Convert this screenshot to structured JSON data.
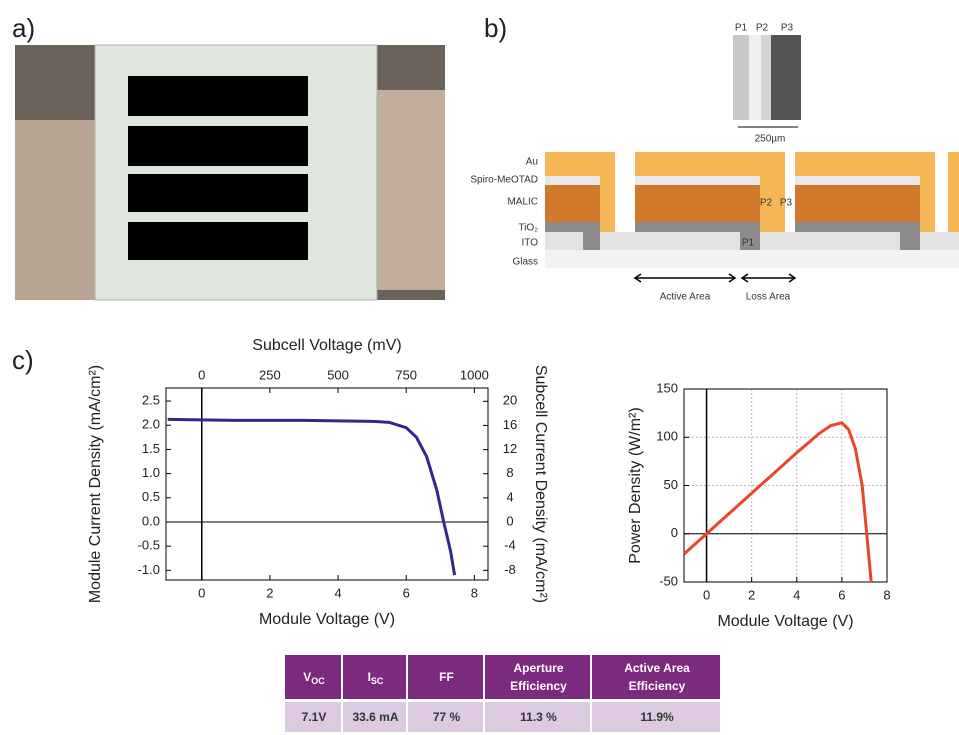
{
  "panel_labels": [
    "a)",
    "b)",
    "c)"
  ],
  "diagram": {
    "scribe_labels": [
      "P1",
      "P2",
      "P3"
    ],
    "scale_label": "250µm",
    "layer_labels": [
      "Au",
      "Spiro-MeOTAD",
      "MALIC",
      "TiO₂",
      "ITO",
      "Glass"
    ],
    "cross_labels": [
      "P2",
      "P3",
      "P1"
    ],
    "area_labels": [
      "Active Area",
      "Loss Area"
    ]
  },
  "chart_data": [
    {
      "type": "line",
      "x_label": "Module Voltage (V)",
      "x2_label": "Subcell Voltage (mV)",
      "y_label": "Module Current Density (mA/cm²)",
      "y2_label": "Subcell Current Density (mA/cm²)",
      "x": [
        -1,
        0,
        1,
        2,
        3,
        4,
        5,
        5.5,
        6,
        6.3,
        6.6,
        6.9,
        7.1,
        7.3,
        7.42
      ],
      "values": [
        2.12,
        2.11,
        2.1,
        2.1,
        2.1,
        2.09,
        2.08,
        2.06,
        1.95,
        1.75,
        1.35,
        0.65,
        0,
        -0.6,
        -1.1
      ],
      "color": "#2e2a8c",
      "xlim": [
        -1.05,
        8.4
      ],
      "xticks": [
        0,
        2,
        4,
        6,
        8
      ],
      "x2lim": [
        -131,
        1050
      ],
      "x2ticks": [
        0,
        250,
        500,
        750,
        1000
      ],
      "ylim": [
        -1.2,
        2.77
      ],
      "yticks": [
        {
          "value": -1,
          "label": "-1.0"
        },
        {
          "value": -0.5,
          "label": "-0.5"
        },
        {
          "value": 0,
          "label": "0.0"
        },
        0.5,
        {
          "value": 1,
          "label": "1.0"
        },
        1.5,
        {
          "value": 2,
          "label": "2.0"
        },
        2.5
      ],
      "y2lim": [
        -9.6,
        22.2
      ],
      "y2ticks": [
        -8,
        -4,
        0,
        4,
        8,
        12,
        16,
        20
      ],
      "zero_lines": true,
      "grid": false
    },
    {
      "type": "line",
      "x_label": "Module Voltage (V)",
      "y_label": "Power Density (W/m²)",
      "x": [
        -1,
        0,
        1,
        2,
        3,
        4,
        5,
        5.5,
        6,
        6.3,
        6.6,
        6.9,
        7.1,
        7.2,
        7.3
      ],
      "values": [
        -21,
        0,
        21,
        42,
        63,
        84,
        104,
        112,
        115,
        108,
        88,
        50,
        0,
        -25,
        -50
      ],
      "color": "#e8452a",
      "xlim": [
        -1,
        8
      ],
      "xticks": [
        0,
        2,
        4,
        6,
        8
      ],
      "ylim": [
        -50,
        150
      ],
      "yticks": [
        -50,
        0,
        50,
        100,
        150
      ],
      "zero_lines": true,
      "grid": true
    }
  ],
  "table": {
    "headers": [
      {
        "text": "V",
        "sub": "OC"
      },
      {
        "text": "I",
        "sub": "SC"
      },
      "FF",
      "Aperture Efficiency",
      "Active Area Efficiency"
    ],
    "rows": [
      [
        "7.1V",
        "33.6 mA",
        "77 %",
        "11.3 %",
        "11.9%"
      ]
    ]
  }
}
